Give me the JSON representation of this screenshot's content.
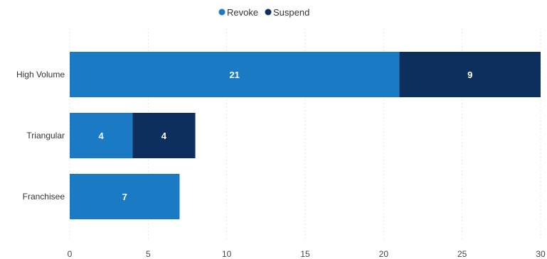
{
  "chart_data": {
    "type": "bar",
    "orientation": "horizontal",
    "stacked": true,
    "categories": [
      "High Volume",
      "Triangular",
      "Franchisee"
    ],
    "series": [
      {
        "name": "Revoke",
        "color": "#1a7ac4",
        "values": [
          21,
          4,
          7
        ]
      },
      {
        "name": "Suspend",
        "color": "#0d2f5e",
        "values": [
          9,
          4,
          0
        ]
      }
    ],
    "xlim": [
      0,
      30
    ],
    "xticks": [
      0,
      5,
      10,
      15,
      20,
      25,
      30
    ],
    "grid": true,
    "legend_position": "top-center"
  }
}
